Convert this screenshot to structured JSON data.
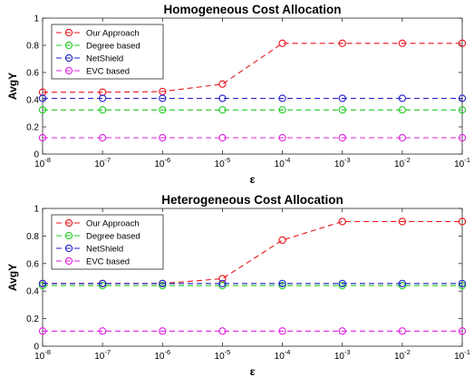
{
  "chart_data": [
    {
      "type": "line",
      "title": "Homogeneous Cost Allocation",
      "xlabel": "ε",
      "ylabel": "AvgY",
      "x_scale": "log",
      "x": [
        1e-08,
        1e-07,
        1e-06,
        1e-05,
        0.0001,
        0.001,
        0.01,
        0.1
      ],
      "x_tick_labels": [
        {
          "base": "10",
          "exp": "-8"
        },
        {
          "base": "10",
          "exp": "-7"
        },
        {
          "base": "10",
          "exp": "-6"
        },
        {
          "base": "10",
          "exp": "-5"
        },
        {
          "base": "10",
          "exp": "-4"
        },
        {
          "base": "10",
          "exp": "-3"
        },
        {
          "base": "10",
          "exp": "-2"
        },
        {
          "base": "10",
          "exp": "-1"
        }
      ],
      "y_ticks": [
        "0",
        "0.2",
        "0.4",
        "0.6",
        "0.8",
        "1"
      ],
      "ylim": [
        0,
        1
      ],
      "grid": false,
      "legend_position": "top-left",
      "series": [
        {
          "name": "Our Approach",
          "color": "#e8141b",
          "values": [
            0.455,
            0.455,
            0.46,
            0.515,
            0.815,
            0.815,
            0.815,
            0.815
          ]
        },
        {
          "name": "Degree based",
          "color": "#22cc22",
          "values": [
            0.325,
            0.325,
            0.325,
            0.325,
            0.325,
            0.325,
            0.325,
            0.325
          ]
        },
        {
          "name": "NetShield",
          "color": "#1f1fcc",
          "values": [
            0.41,
            0.41,
            0.41,
            0.41,
            0.41,
            0.41,
            0.41,
            0.41
          ]
        },
        {
          "name": "EVC based",
          "color": "#e020e0",
          "values": [
            0.12,
            0.12,
            0.12,
            0.12,
            0.12,
            0.12,
            0.12,
            0.12
          ]
        }
      ]
    },
    {
      "type": "line",
      "title": "Heterogeneous Cost Allocation",
      "xlabel": "ε",
      "ylabel": "AvgY",
      "x_scale": "log",
      "x": [
        1e-08,
        1e-07,
        1e-06,
        1e-05,
        0.0001,
        0.001,
        0.01,
        0.1
      ],
      "x_tick_labels": [
        {
          "base": "10",
          "exp": "-8"
        },
        {
          "base": "10",
          "exp": "-7"
        },
        {
          "base": "10",
          "exp": "-6"
        },
        {
          "base": "10",
          "exp": "-5"
        },
        {
          "base": "10",
          "exp": "-4"
        },
        {
          "base": "10",
          "exp": "-3"
        },
        {
          "base": "10",
          "exp": "-2"
        },
        {
          "base": "10",
          "exp": "-1"
        }
      ],
      "y_ticks": [
        "0",
        "0.2",
        "0.4",
        "0.6",
        "0.8",
        "1"
      ],
      "ylim": [
        0,
        1
      ],
      "grid": false,
      "legend_position": "top-left",
      "series": [
        {
          "name": "Our Approach",
          "color": "#e8141b",
          "values": [
            0.455,
            0.455,
            0.455,
            0.49,
            0.77,
            0.905,
            0.905,
            0.905
          ]
        },
        {
          "name": "Degree based",
          "color": "#22cc22",
          "values": [
            0.44,
            0.44,
            0.44,
            0.44,
            0.44,
            0.44,
            0.44,
            0.44
          ]
        },
        {
          "name": "NetShield",
          "color": "#1f1fcc",
          "values": [
            0.455,
            0.455,
            0.455,
            0.455,
            0.455,
            0.455,
            0.455,
            0.455
          ]
        },
        {
          "name": "EVC based",
          "color": "#e020e0",
          "values": [
            0.11,
            0.11,
            0.11,
            0.11,
            0.11,
            0.11,
            0.11,
            0.11
          ]
        }
      ]
    }
  ]
}
